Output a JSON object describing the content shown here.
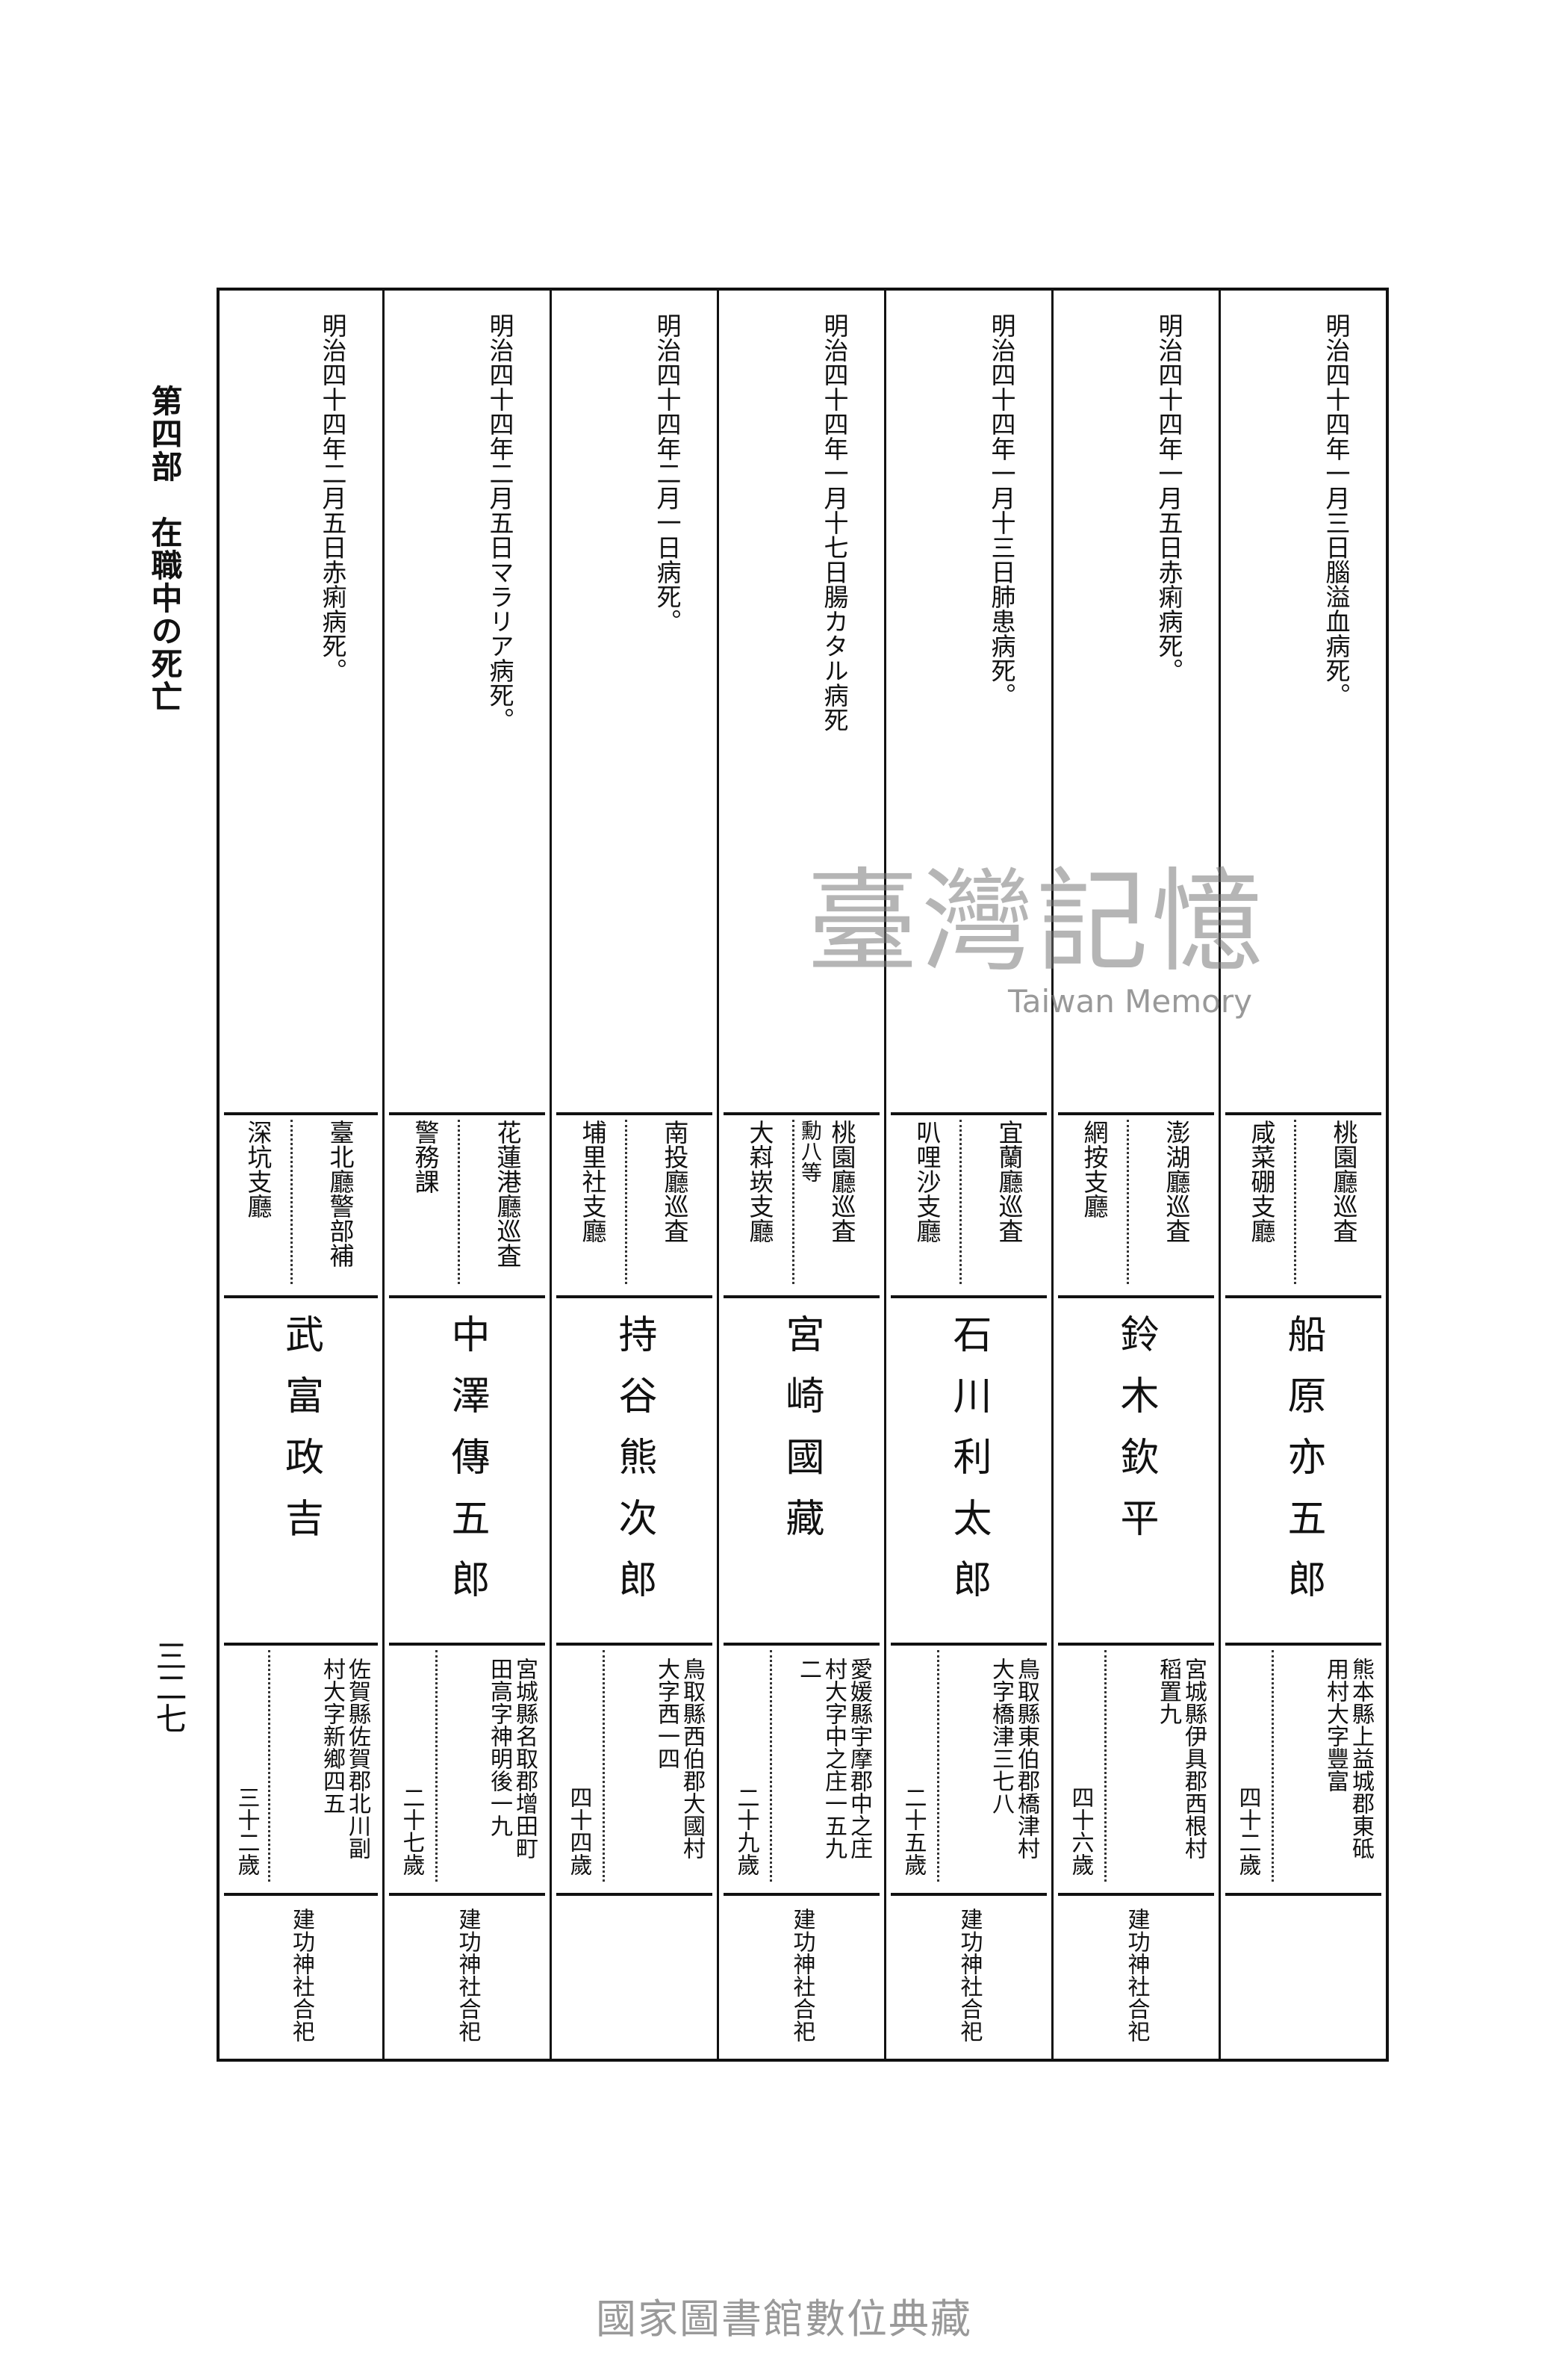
{
  "header": {
    "section_title": "第四部　在職中の死亡",
    "page_number": "三二七"
  },
  "entries": [
    {
      "death": "明治四十四年一月三日腦溢血病死。",
      "post": "桃園廳巡査",
      "honor": "",
      "branch": "咸菜硼支廳",
      "name": "船原亦五郎",
      "address": [
        "熊本縣上益城郡東砥",
        "用村大字豐富"
      ],
      "age": "四十二歲",
      "shrine": ""
    },
    {
      "death": "明治四十四年一月五日赤痢病死。",
      "post": "澎湖廳巡査",
      "honor": "",
      "branch": "網按支廳",
      "name": "鈴木欽平",
      "address": [
        "宮城縣伊具郡西根村",
        "稻置九"
      ],
      "age": "四十六歲",
      "shrine": "建功神社合祀"
    },
    {
      "death": "明治四十四年一月十三日肺患病死。",
      "post": "宜蘭廳巡査",
      "honor": "",
      "branch": "叭哩沙支廳",
      "name": "石川利太郎",
      "address": [
        "鳥取縣東伯郡橋津村",
        "大字橋津三七八"
      ],
      "age": "二十五歲",
      "shrine": "建功神社合祀"
    },
    {
      "death": "明治四十四年一月十七日腸カタル病死",
      "post": "桃園廳巡査",
      "honor": "勳八等",
      "branch": "大嵙崁支廳",
      "name": "宮崎國藏",
      "address": [
        "愛媛縣宇摩郡中之庄",
        "村大字中之庄一五九",
        "二"
      ],
      "age": "二十九歲",
      "shrine": "建功神社合祀"
    },
    {
      "death": "明治四十四年二月一日病死。",
      "post": "南投廳巡査",
      "honor": "",
      "branch": "埔里社支廳",
      "name": "持谷熊次郎",
      "address": [
        "鳥取縣西伯郡大國村",
        "大字西一四"
      ],
      "age": "四十四歲",
      "shrine": ""
    },
    {
      "death": "明治四十四年二月五日マラリア病死。",
      "post": "花蓮港廳巡査",
      "honor": "",
      "branch": "警務課",
      "name": "中澤傳五郎",
      "address": [
        "宮城縣名取郡增田町",
        "田高字神明後一九"
      ],
      "age": "二十七歲",
      "shrine": "建功神社合祀"
    },
    {
      "death": "明治四十四年二月五日赤痢病死。",
      "post": "臺北廳警部補",
      "honor": "",
      "branch": "深坑支廳",
      "name": "武富政吉",
      "address": [
        "佐賀縣佐賀郡北川副",
        "村大字新鄉四五"
      ],
      "age": "三十二歲",
      "shrine": "建功神社合祀"
    }
  ],
  "watermark": {
    "chinese": "臺灣記憶",
    "english": "Taiwan Memory"
  },
  "footer": {
    "text": "國家圖書館數位典藏"
  }
}
